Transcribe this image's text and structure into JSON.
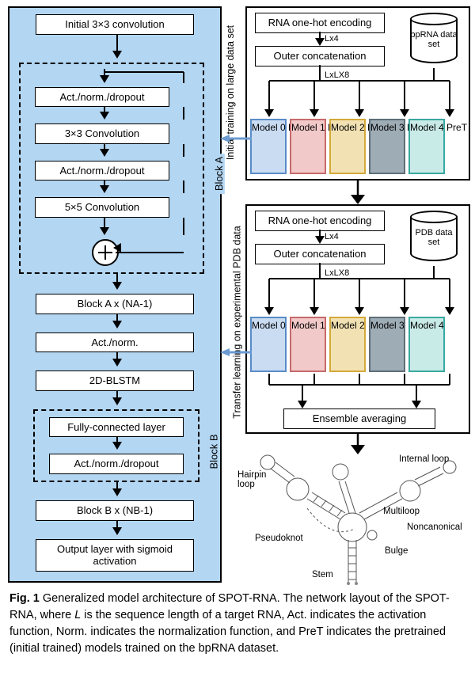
{
  "left": {
    "initial": "Initial 3×3 convolution",
    "blockA": {
      "label": "Block A",
      "act1": "Act./norm./dropout",
      "conv3": "3×3 Convolution",
      "act2": "Act./norm./dropout",
      "conv5": "5×5 Convolution"
    },
    "blockAx": "Block A x (NA-1)",
    "actnorm": "Act./norm.",
    "blstm": "2D-BLSTM",
    "blockB": {
      "label": "Block B",
      "fc": "Fully-connected layer",
      "act": "Act./norm./dropout"
    },
    "blockBx": "Block B x (NB-1)",
    "output": "Output layer with sigmoid activation"
  },
  "right": {
    "top": {
      "side_label": "Initial training on large data set",
      "enc": "RNA one-hot encoding",
      "lx4": "Lx4",
      "outer": "Outer concatenation",
      "lxlx8": "LxLX8",
      "db_label": "bpRNA data set",
      "models": [
        {
          "label": "Model 0 PreT",
          "bg": "#c9dcf2",
          "border": "#5a8cc7"
        },
        {
          "label": "Model 1 PreT",
          "bg": "#f2c9c9",
          "border": "#c76a6a"
        },
        {
          "label": "Model 2 PreT",
          "bg": "#f2e2b3",
          "border": "#d4a93a"
        },
        {
          "label": "Model 3 PreT",
          "bg": "#9eacb5",
          "border": "#5e6e78"
        },
        {
          "label": "Model 4 PreT",
          "bg": "#c9ebe8",
          "border": "#3aa9a0"
        }
      ]
    },
    "mid": {
      "side_label": "Transfer learning on experimental PDB data",
      "enc": "RNA one-hot encoding",
      "lx4": "Lx4",
      "outer": "Outer concatenation",
      "lxlx8": "LxLX8",
      "db_label": "PDB data set",
      "models": [
        {
          "label": "Model 0",
          "bg": "#c9dcf2",
          "border": "#5a8cc7"
        },
        {
          "label": "Model 1",
          "bg": "#f2c9c9",
          "border": "#c76a6a"
        },
        {
          "label": "Model 2",
          "bg": "#f2e2b3",
          "border": "#d4a93a"
        },
        {
          "label": "Model 3",
          "bg": "#9eacb5",
          "border": "#5e6e78"
        },
        {
          "label": "Model 4",
          "bg": "#c9ebe8",
          "border": "#3aa9a0"
        }
      ],
      "ensemble": "Ensemble averaging"
    },
    "rna_labels": {
      "hairpin": "Hairpin loop",
      "internal": "Internal loop",
      "multiloop": "Multiloop",
      "noncanonical": "Noncanonical",
      "pseudoknot": "Pseudoknot",
      "stem": "Stem",
      "bulge": "Bulge"
    }
  },
  "caption": {
    "fignum": "Fig. 1",
    "text": " Generalized model architecture of SPOT-RNA. The network layout of the SPOT-RNA, where L is the sequence length of a target RNA, Act. indicates the activation function, Norm. indicates the normalization function, and PreT indicates the pretrained (initial trained) models trained on the bpRNA dataset."
  },
  "colors": {
    "bg": "#b3d6f2",
    "arrow_blue": "#6c9bd1"
  }
}
